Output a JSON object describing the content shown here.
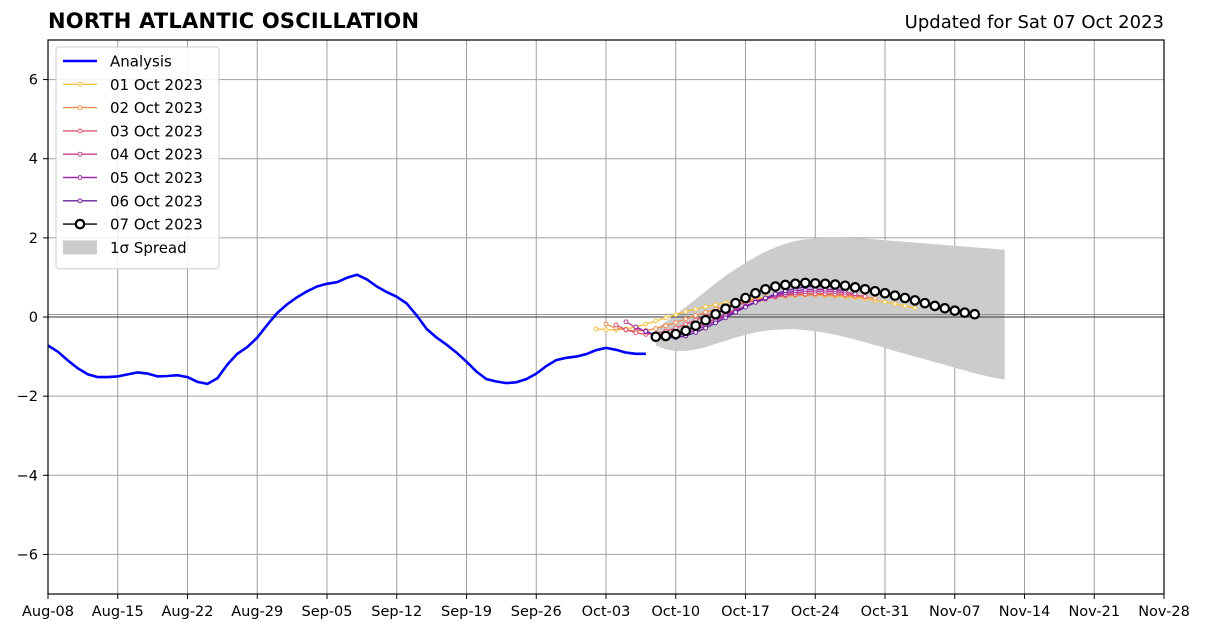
{
  "title": "NORTH ATLANTIC OSCILLATION",
  "subtitle": "Updated for Sat 07 Oct 2023",
  "chart_data": {
    "type": "line",
    "title": "NORTH ATLANTIC OSCILLATION",
    "x_axis": {
      "type": "date",
      "range": [
        "Aug-08",
        "Nov-28"
      ],
      "tick_labels": [
        "Aug-08",
        "Aug-15",
        "Aug-22",
        "Aug-29",
        "Sep-05",
        "Sep-12",
        "Sep-19",
        "Sep-26",
        "Oct-03",
        "Oct-10",
        "Oct-17",
        "Oct-24",
        "Oct-31",
        "Nov-07",
        "Nov-14",
        "Nov-21",
        "Nov-28"
      ]
    },
    "y_axis": {
      "range": [
        -7,
        7
      ],
      "tick_values": [
        -6,
        -4,
        -2,
        0,
        2,
        4,
        6
      ],
      "tick_labels": [
        "−6",
        "−4",
        "−2",
        "0",
        "2",
        "4",
        "6"
      ]
    },
    "grid": true,
    "legend_position": "top-left",
    "zero_line": true,
    "series": [
      {
        "name": "Analysis",
        "color": "#0000ff",
        "style": "line",
        "start": "Aug-08",
        "values": [
          -0.72,
          -0.88,
          -1.1,
          -1.3,
          -1.45,
          -1.52,
          -1.52,
          -1.5,
          -1.45,
          -1.4,
          -1.43,
          -1.5,
          -1.49,
          -1.47,
          -1.52,
          -1.64,
          -1.69,
          -1.55,
          -1.2,
          -0.93,
          -0.76,
          -0.52,
          -0.2,
          0.1,
          0.32,
          0.5,
          0.65,
          0.77,
          0.84,
          0.88,
          0.99,
          1.07,
          0.95,
          0.77,
          0.63,
          0.51,
          0.34,
          0.04,
          -0.3,
          -0.52,
          -0.7,
          -0.9,
          -1.13,
          -1.38,
          -1.57,
          -1.63,
          -1.67,
          -1.65,
          -1.57,
          -1.43,
          -1.24,
          -1.09,
          -1.03,
          -1.0,
          -0.94,
          -0.84,
          -0.78,
          -0.83,
          -0.9,
          -0.93,
          -0.93
        ]
      },
      {
        "name": "01 Oct 2023",
        "color": "#f5c342",
        "style": "line-dot",
        "start": "Oct-02",
        "values": [
          -0.3,
          -0.32,
          -0.32,
          -0.3,
          -0.25,
          -0.18,
          -0.1,
          -0.02,
          0.06,
          0.14,
          0.2,
          0.26,
          0.31,
          0.36,
          0.4,
          0.44,
          0.47,
          0.5,
          0.52,
          0.53,
          0.54,
          0.55,
          0.55,
          0.54,
          0.53,
          0.51,
          0.49,
          0.46,
          0.42,
          0.38,
          0.33,
          0.28,
          0.23
        ]
      },
      {
        "name": "02 Oct 2023",
        "color": "#f28c50",
        "style": "line-dot",
        "start": "Oct-03",
        "values": [
          -0.18,
          -0.28,
          -0.33,
          -0.35,
          -0.34,
          -0.29,
          -0.22,
          -0.14,
          -0.05,
          0.04,
          0.12,
          0.2,
          0.27,
          0.33,
          0.39,
          0.43,
          0.47,
          0.5,
          0.53,
          0.55,
          0.56,
          0.56,
          0.56,
          0.55,
          0.54,
          0.52,
          0.5,
          0.47
        ]
      },
      {
        "name": "03 Oct 2023",
        "color": "#e05570",
        "style": "line-dot",
        "start": "Oct-04",
        "values": [
          -0.2,
          -0.32,
          -0.4,
          -0.44,
          -0.42,
          -0.36,
          -0.28,
          -0.18,
          -0.08,
          0.02,
          0.12,
          0.21,
          0.29,
          0.36,
          0.42,
          0.47,
          0.51,
          0.55,
          0.57,
          0.58,
          0.59,
          0.59,
          0.58,
          0.57,
          0.55,
          0.52
        ]
      },
      {
        "name": "04 Oct 2023",
        "color": "#c63d92",
        "style": "line-dot",
        "start": "Oct-05",
        "values": [
          -0.12,
          -0.27,
          -0.38,
          -0.45,
          -0.47,
          -0.44,
          -0.37,
          -0.27,
          -0.16,
          -0.04,
          0.07,
          0.18,
          0.28,
          0.37,
          0.45,
          0.52,
          0.57,
          0.61,
          0.64,
          0.65,
          0.65,
          0.64,
          0.62,
          0.59
        ]
      },
      {
        "name": "05 Oct 2023",
        "color": "#9c2aa8",
        "style": "line-dot",
        "start": "Oct-06",
        "values": [
          -0.25,
          -0.37,
          -0.46,
          -0.5,
          -0.48,
          -0.42,
          -0.33,
          -0.22,
          -0.1,
          0.03,
          0.15,
          0.27,
          0.38,
          0.47,
          0.55,
          0.61,
          0.66,
          0.69,
          0.7,
          0.7,
          0.69,
          0.67
        ]
      },
      {
        "name": "06 Oct 2023",
        "color": "#6a1f9f",
        "style": "line-dot",
        "start": "Oct-07",
        "values": [
          -0.36,
          -0.46,
          -0.52,
          -0.52,
          -0.48,
          -0.39,
          -0.28,
          -0.15,
          -0.02,
          0.12,
          0.25,
          0.37,
          0.48,
          0.58,
          0.66,
          0.72,
          0.76,
          0.78,
          0.78,
          0.77
        ]
      },
      {
        "name": "07 Oct 2023",
        "color": "#000000",
        "style": "line-circle",
        "start": "Oct-08",
        "values": [
          -0.5,
          -0.48,
          -0.43,
          -0.35,
          -0.22,
          -0.08,
          0.07,
          0.21,
          0.35,
          0.48,
          0.6,
          0.7,
          0.77,
          0.81,
          0.84,
          0.86,
          0.85,
          0.84,
          0.82,
          0.79,
          0.75,
          0.7,
          0.65,
          0.6,
          0.54,
          0.48,
          0.42,
          0.35,
          0.28,
          0.22,
          0.16,
          0.11,
          0.07
        ]
      },
      {
        "name": "1σ Spread",
        "color": "#cccccc",
        "style": "band",
        "start": "Oct-08",
        "upper": [
          -0.3,
          -0.12,
          0.06,
          0.25,
          0.45,
          0.65,
          0.85,
          1.04,
          1.21,
          1.37,
          1.52,
          1.65,
          1.76,
          1.85,
          1.92,
          1.96,
          1.98,
          2.0,
          2.0,
          2.0,
          1.99,
          1.98,
          1.96,
          1.94,
          1.92,
          1.9,
          1.88,
          1.86,
          1.84,
          1.82,
          1.8,
          1.78,
          1.76,
          1.74,
          1.72,
          1.7
        ],
        "lower": [
          -0.72,
          -0.82,
          -0.86,
          -0.86,
          -0.82,
          -0.76,
          -0.68,
          -0.6,
          -0.52,
          -0.45,
          -0.39,
          -0.35,
          -0.32,
          -0.31,
          -0.31,
          -0.33,
          -0.36,
          -0.4,
          -0.45,
          -0.51,
          -0.57,
          -0.64,
          -0.71,
          -0.78,
          -0.86,
          -0.93,
          -1.0,
          -1.07,
          -1.14,
          -1.21,
          -1.28,
          -1.35,
          -1.42,
          -1.48,
          -1.54,
          -1.58
        ]
      }
    ]
  }
}
